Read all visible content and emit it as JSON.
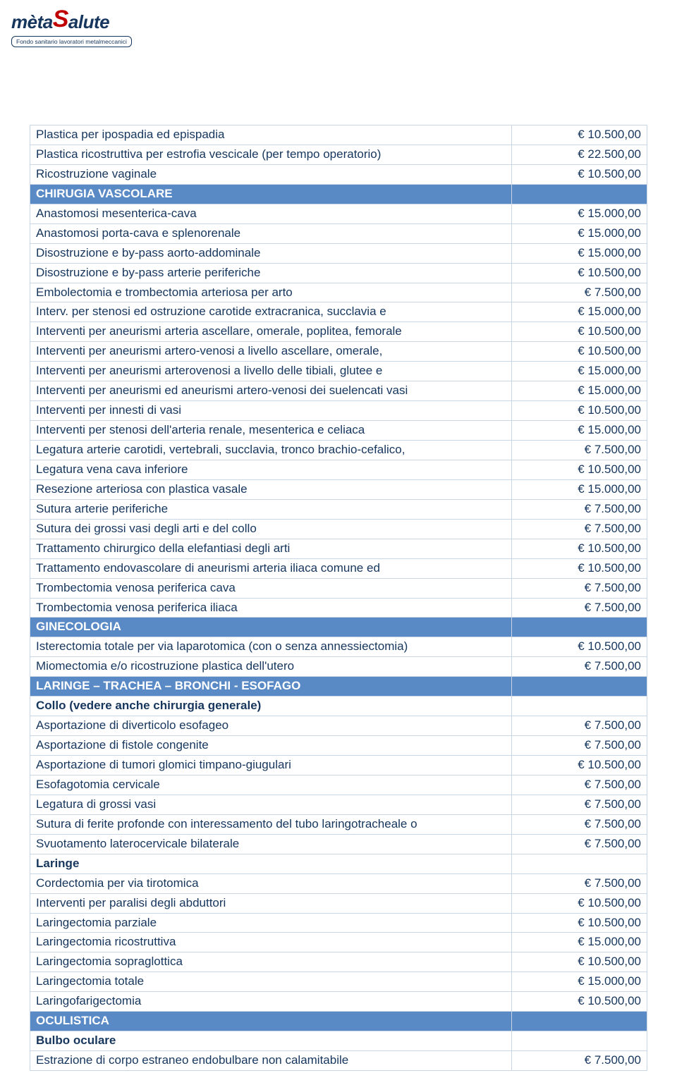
{
  "logo": {
    "brand_meta": "mèta",
    "brand_salute": "Salute",
    "tagline": "Fondo sanitario lavoratori metalmeccanici"
  },
  "colors": {
    "text": "#16365d",
    "accent": "#c00000",
    "section_bg": "#5a8ac6",
    "section_fg": "#ffffff",
    "border": "#c9d6e6"
  },
  "rows": [
    {
      "t": "row",
      "desc": "Plastica per ipospadia ed epispadia",
      "amt": "€ 10.500,00"
    },
    {
      "t": "row",
      "desc": "Plastica ricostruttiva per estrofia vescicale (per tempo operatorio)",
      "amt": "€ 22.500,00"
    },
    {
      "t": "row",
      "desc": "Ricostruzione vaginale",
      "amt": "€ 10.500,00"
    },
    {
      "t": "section",
      "desc": "CHIRUGIA VASCOLARE"
    },
    {
      "t": "row",
      "desc": "Anastomosi mesenterica-cava",
      "amt": "€ 15.000,00"
    },
    {
      "t": "row",
      "desc": "Anastomosi porta-cava e splenorenale",
      "amt": "€ 15.000,00"
    },
    {
      "t": "row",
      "desc": "Disostruzione e by-pass aorto-addominale",
      "amt": "€ 15.000,00"
    },
    {
      "t": "row",
      "desc": "Disostruzione e by-pass arterie periferiche",
      "amt": "€ 10.500,00"
    },
    {
      "t": "row",
      "desc": "Embolectomia e trombectomia arteriosa per arto",
      "amt": "€ 7.500,00"
    },
    {
      "t": "row",
      "desc": "Interv. per stenosi ed ostruzione carotide extracranica, succlavia e",
      "amt": "€ 15.000,00"
    },
    {
      "t": "row",
      "desc": "Interventi per aneurismi arteria ascellare, omerale, poplitea, femorale",
      "amt": "€ 10.500,00"
    },
    {
      "t": "row",
      "desc": "Interventi per aneurismi artero-venosi a livello ascellare, omerale,",
      "amt": "€ 10.500,00"
    },
    {
      "t": "row",
      "desc": "Interventi per aneurismi arterovenosi a livello delle tibiali, glutee e",
      "amt": "€ 15.000,00"
    },
    {
      "t": "row",
      "desc": "Interventi per aneurismi ed aneurismi artero-venosi dei suelencati vasi",
      "amt": "€ 15.000,00"
    },
    {
      "t": "row",
      "desc": "Interventi per innesti di vasi",
      "amt": "€ 10.500,00"
    },
    {
      "t": "row",
      "desc": "Interventi per stenosi dell'arteria renale, mesenterica e celiaca",
      "amt": "€ 15.000,00"
    },
    {
      "t": "row",
      "desc": "Legatura arterie carotidi, vertebrali, succlavia, tronco brachio-cefalico,",
      "amt": "€ 7.500,00"
    },
    {
      "t": "row",
      "desc": "Legatura vena cava inferiore",
      "amt": "€ 10.500,00"
    },
    {
      "t": "row",
      "desc": "Resezione arteriosa con plastica vasale",
      "amt": "€ 15.000,00"
    },
    {
      "t": "row",
      "desc": "Sutura arterie periferiche",
      "amt": "€ 7.500,00"
    },
    {
      "t": "row",
      "desc": "Sutura dei grossi vasi degli arti e del collo",
      "amt": "€ 7.500,00"
    },
    {
      "t": "row",
      "desc": "Trattamento chirurgico della elefantiasi degli arti",
      "amt": "€ 10.500,00"
    },
    {
      "t": "row",
      "desc": "Trattamento endovascolare di aneurismi arteria iliaca comune ed",
      "amt": "€ 10.500,00"
    },
    {
      "t": "row",
      "desc": "Trombectomia venosa periferica cava",
      "amt": "€ 7.500,00"
    },
    {
      "t": "row",
      "desc": "Trombectomia venosa periferica iliaca",
      "amt": "€ 7.500,00"
    },
    {
      "t": "section",
      "desc": "GINECOLOGIA"
    },
    {
      "t": "row",
      "desc": "Isterectomia totale per via laparotomica (con o senza annessiectomia)",
      "amt": "€ 10.500,00"
    },
    {
      "t": "row",
      "desc": "Miomectomia e/o ricostruzione plastica dell'utero",
      "amt": "€ 7.500,00"
    },
    {
      "t": "section",
      "desc": "LARINGE – TRACHEA – BRONCHI - ESOFAGO"
    },
    {
      "t": "sub",
      "desc": "Collo (vedere anche chirurgia generale)"
    },
    {
      "t": "row",
      "desc": "Asportazione di diverticolo esofageo",
      "amt": "€ 7.500,00"
    },
    {
      "t": "row",
      "desc": "Asportazione di fistole congenite",
      "amt": "€ 7.500,00"
    },
    {
      "t": "row",
      "desc": "Asportazione di tumori glomici timpano-giugulari",
      "amt": "€ 10.500,00"
    },
    {
      "t": "row",
      "desc": "Esofagotomia cervicale",
      "amt": "€ 7.500,00"
    },
    {
      "t": "row",
      "desc": "Legatura di grossi vasi",
      "amt": "€ 7.500,00"
    },
    {
      "t": "row",
      "desc": "Sutura di ferite profonde con interessamento del tubo laringotracheale o",
      "amt": "€ 7.500,00"
    },
    {
      "t": "row",
      "desc": "Svuotamento laterocervicale bilaterale",
      "amt": "€ 7.500,00"
    },
    {
      "t": "sub",
      "desc": "Laringe"
    },
    {
      "t": "row",
      "desc": "Cordectomia per via tirotomica",
      "amt": "€ 7.500,00"
    },
    {
      "t": "row",
      "desc": "Interventi per paralisi degli abduttori",
      "amt": "€ 10.500,00"
    },
    {
      "t": "row",
      "desc": "Laringectomia parziale",
      "amt": "€ 10.500,00"
    },
    {
      "t": "row",
      "desc": "Laringectomia ricostruttiva",
      "amt": "€ 15.000,00"
    },
    {
      "t": "row",
      "desc": "Laringectomia sopraglottica",
      "amt": "€ 10.500,00"
    },
    {
      "t": "row",
      "desc": "Laringectomia totale",
      "amt": "€ 15.000,00"
    },
    {
      "t": "row",
      "desc": "Laringofarigectomia",
      "amt": "€ 10.500,00"
    },
    {
      "t": "section",
      "desc": "OCULISTICA"
    },
    {
      "t": "sub",
      "desc": "Bulbo oculare"
    },
    {
      "t": "row",
      "desc": "Estrazione di corpo estraneo endobulbare non calamitabile",
      "amt": "€ 7.500,00"
    }
  ]
}
